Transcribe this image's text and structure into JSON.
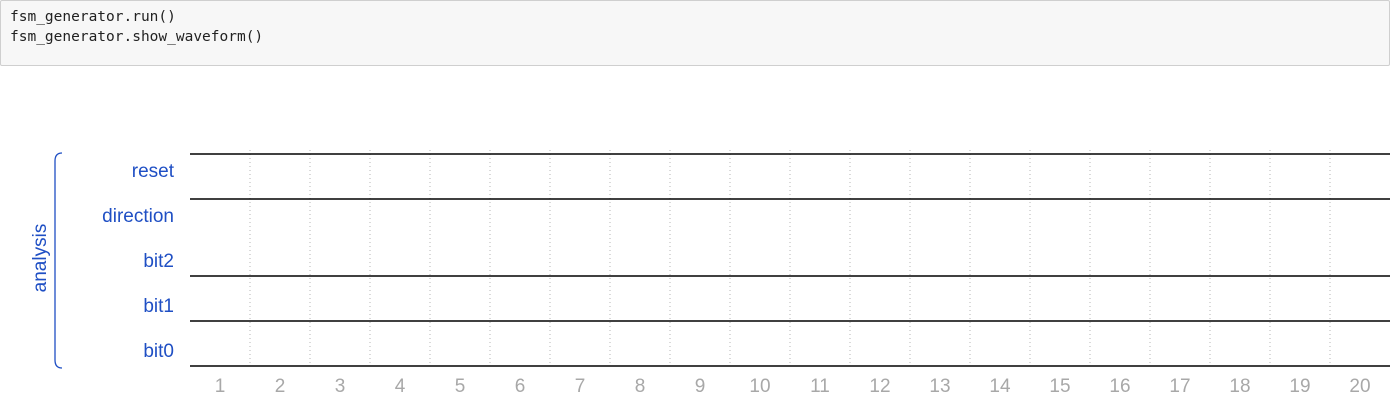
{
  "code_cell": {
    "lines": [
      "fsm_generator.run()",
      "fsm_generator.show_waveform()"
    ]
  },
  "waveform": {
    "group_label": "analysis",
    "signals": [
      {
        "name": "reset",
        "level": 1
      },
      {
        "name": "direction",
        "level": 1
      },
      {
        "name": "bit2",
        "level": 0
      },
      {
        "name": "bit1",
        "level": 0
      },
      {
        "name": "bit0",
        "level": 0
      }
    ],
    "ticks": [
      "1",
      "2",
      "3",
      "4",
      "5",
      "6",
      "7",
      "8",
      "9",
      "10",
      "11",
      "12",
      "13",
      "14",
      "15",
      "16",
      "17",
      "18",
      "19",
      "20"
    ],
    "colors": {
      "label": "#1f4fc4",
      "trace": "#000000",
      "grid": "#b4b4b4",
      "tick": "#a8a8a8"
    }
  }
}
